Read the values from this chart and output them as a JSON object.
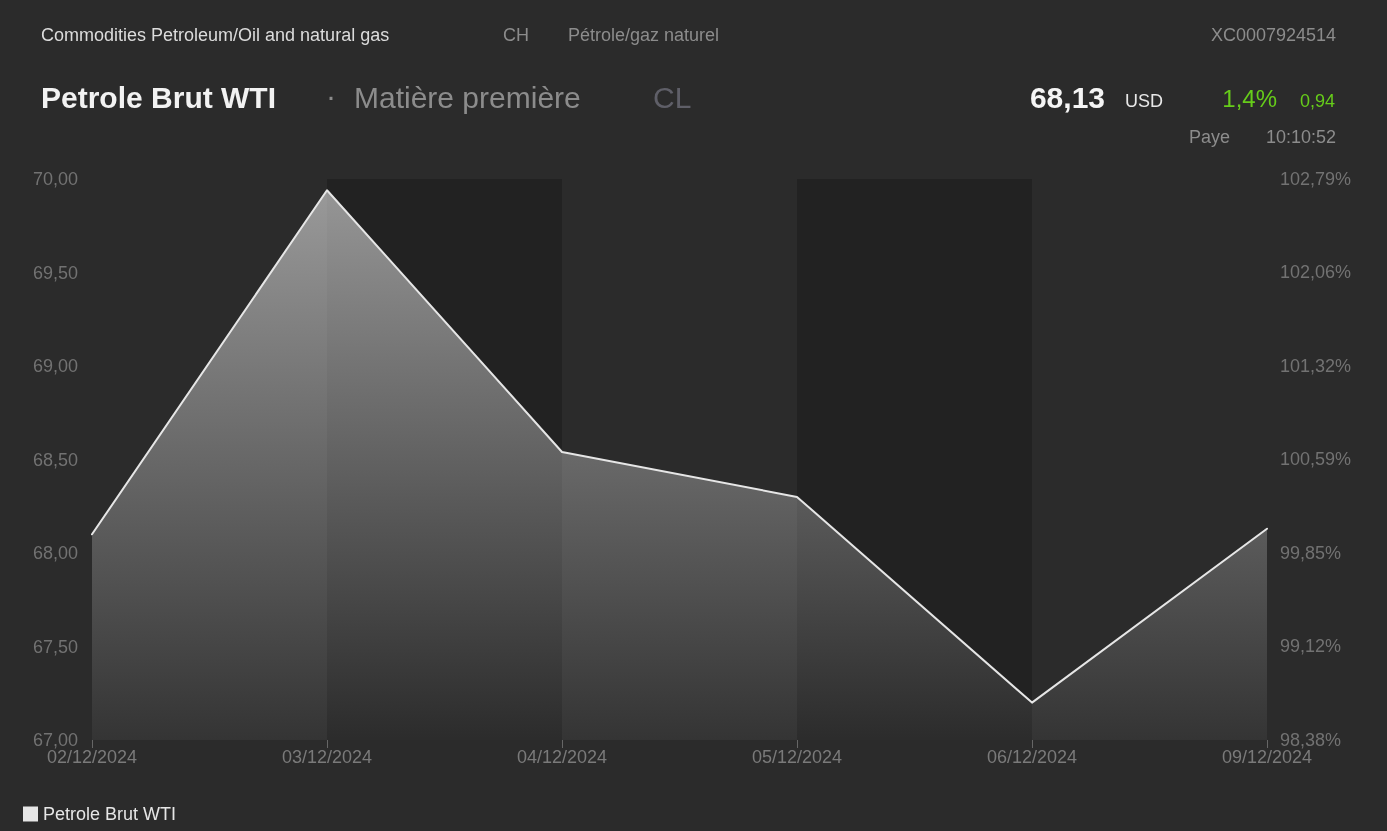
{
  "chart_data": {
    "type": "area",
    "title": "Petrole Brut WTI",
    "subtitle": "Matière première",
    "annotations": [
      "Commodities Petroleum/Oil and natural gas",
      "CH",
      "Pétrole/gaz naturel",
      "XC0007924514",
      "·",
      "CL",
      "68,13",
      "USD",
      "1,4%",
      "0,94",
      "Paye",
      "10:10:52"
    ],
    "categories": [
      "02/12/2024",
      "03/12/2024",
      "04/12/2024",
      "05/12/2024",
      "06/12/2024",
      "09/12/2024"
    ],
    "series": [
      {
        "name": "Petrole Brut WTI",
        "color": "#e6e6e6",
        "values": [
          68.1,
          69.94,
          68.54,
          68.3,
          67.2,
          68.13
        ]
      }
    ],
    "ylim": [
      67,
      70
    ],
    "yticks": [
      {
        "value": 67,
        "label": "67,00"
      },
      {
        "value": 67.5,
        "label": "67,50"
      },
      {
        "value": 68,
        "label": "68,00"
      },
      {
        "value": 68.5,
        "label": "68,50"
      },
      {
        "value": 69,
        "label": "69,00"
      },
      {
        "value": 69.5,
        "label": "69,50"
      },
      {
        "value": 70,
        "label": "70,00"
      }
    ],
    "y2lim": [
      98.38,
      102.79
    ],
    "y2ticks": [
      {
        "value": 98.38,
        "label": "98,38%"
      },
      {
        "value": 99.12,
        "label": "99,12%"
      },
      {
        "value": 99.85,
        "label": "99,85%"
      },
      {
        "value": 100.59,
        "label": "100,59%"
      },
      {
        "value": 101.32,
        "label": "101,32%"
      },
      {
        "value": 102.06,
        "label": "102,06%"
      },
      {
        "value": 102.79,
        "label": "102,79%"
      }
    ],
    "bands": [
      {
        "axis": "x",
        "from": "03/12/2024",
        "to": "04/12/2024",
        "color": "#222222"
      },
      {
        "axis": "x",
        "from": "05/12/2024",
        "to": "06/12/2024",
        "color": "#222222"
      }
    ],
    "grid": false,
    "legend": "bottom left",
    "marker": "none"
  }
}
